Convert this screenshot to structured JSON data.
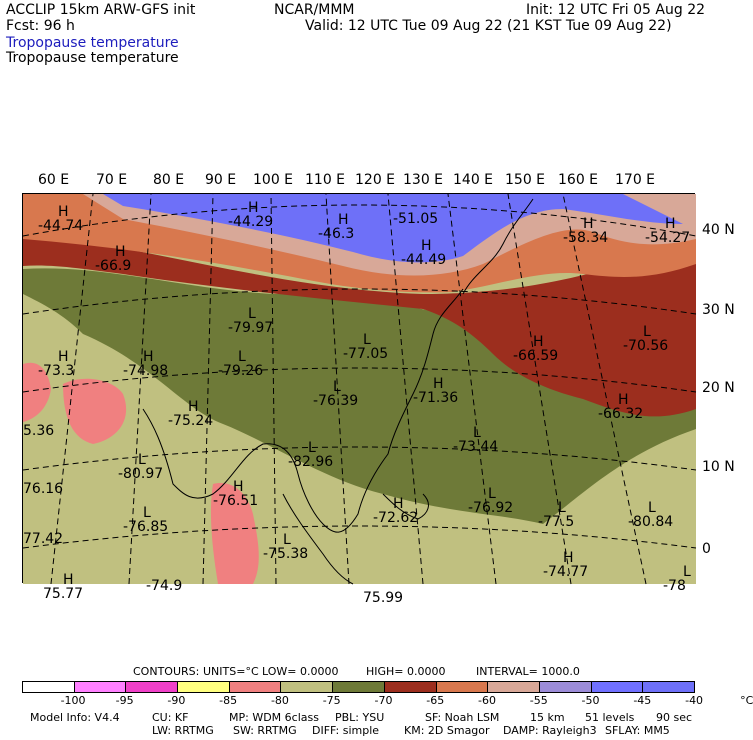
{
  "header": {
    "model": "ACCLIP 15km ARW-GFS init",
    "org": "NCAR/MMM",
    "init": "Init: 12 UTC Fri 05 Aug 22",
    "fcst": "Fcst:   96 h",
    "valid": "Valid: 12 UTC Tue 09 Aug 22 (21 KST Tue 09 Aug 22)",
    "field_blue": "Tropopause temperature",
    "field_black": "Tropopause temperature"
  },
  "lon_labels": [
    "60 E",
    "70 E",
    "80 E",
    "90 E",
    "100 E",
    "110 E",
    "120 E",
    "130 E",
    "140 E",
    "150 E",
    "160 E",
    "170 E"
  ],
  "lat_labels": [
    "40 N",
    "30 N",
    "20 N",
    "10 N",
    "0"
  ],
  "map_labels": [
    {
      "hl": "H",
      "val": "-44.74"
    },
    {
      "hl": "H",
      "val": "-44.29"
    },
    {
      "hl": "H",
      "val": "-46.3"
    },
    {
      "hl": "",
      "val": "-51.05"
    },
    {
      "hl": "H",
      "val": "-44.49"
    },
    {
      "hl": "H",
      "val": "-58.34"
    },
    {
      "hl": "H",
      "val": "-54.27"
    },
    {
      "hl": "H",
      "val": "-66.9"
    },
    {
      "hl": "L",
      "val": "-79.97"
    },
    {
      "hl": "L",
      "val": "-77.05"
    },
    {
      "hl": "H",
      "val": "-66.59"
    },
    {
      "hl": "L",
      "val": "-70.56"
    },
    {
      "hl": "H",
      "val": "-73.3"
    },
    {
      "hl": "H",
      "val": "-74.98"
    },
    {
      "hl": "L",
      "val": "-79.26"
    },
    {
      "hl": "L",
      "val": "-76.39"
    },
    {
      "hl": "H",
      "val": "-71.36"
    },
    {
      "hl": "H",
      "val": "-66.32"
    },
    {
      "hl": "",
      "val": "5.36"
    },
    {
      "hl": "H",
      "val": "-75.24"
    },
    {
      "hl": "L",
      "val": "-73.44"
    },
    {
      "hl": "L",
      "val": "-80.97"
    },
    {
      "hl": "L",
      "val": "-82.96"
    },
    {
      "hl": "",
      "val": "76.16"
    },
    {
      "hl": "H",
      "val": "-76.51"
    },
    {
      "hl": "L",
      "val": "-76.92"
    },
    {
      "hl": "L",
      "val": "-77.5"
    },
    {
      "hl": "L",
      "val": "-80.84"
    },
    {
      "hl": "",
      "val": "77.42"
    },
    {
      "hl": "L",
      "val": "-76.85"
    },
    {
      "hl": "H",
      "val": "-72.62"
    },
    {
      "hl": "L",
      "val": "-75.38"
    },
    {
      "hl": "H",
      "val": "-74.77"
    },
    {
      "hl": "H",
      "val": "75.77"
    },
    {
      "hl": "",
      "val": "-74.9"
    },
    {
      "hl": "",
      "val": "75.99"
    },
    {
      "hl": "L",
      "val": "-78"
    }
  ],
  "contours": {
    "label": "CONTOURS:",
    "units": "UNITS=°C",
    "low": "LOW=  0.0000",
    "high": "HIGH=  0.0000",
    "interval": "INTERVAL=    1000.0"
  },
  "colorbar": {
    "colors": [
      "#ffffff",
      "#ff80ff",
      "#f040c8",
      "#ffff80",
      "#f08080",
      "#c0c080",
      "#6e7a38",
      "#9c2e1e",
      "#d8784e",
      "#d8a898",
      "#9c8cd8",
      "#7070ff",
      "#6e70f8"
    ],
    "ticks": [
      "-100",
      "-95",
      "-90",
      "-85",
      "-80",
      "-75",
      "-70",
      "-65",
      "-60",
      "-55",
      "-50",
      "-45",
      "-40",
      "°C"
    ]
  },
  "footer": {
    "line1": [
      "Model Info: V4.4",
      "CU: KF",
      "MP: WDM 6class",
      "PBL: YSU",
      "SF: Noah LSM",
      "15 km",
      "51 levels",
      "90 sec"
    ],
    "line2": [
      "LW: RRTMG",
      "SW: RRTMG",
      "DIFF: simple",
      "KM: 2D Smagor",
      "DAMP: Rayleigh3",
      "SFLAY: MM5"
    ]
  }
}
